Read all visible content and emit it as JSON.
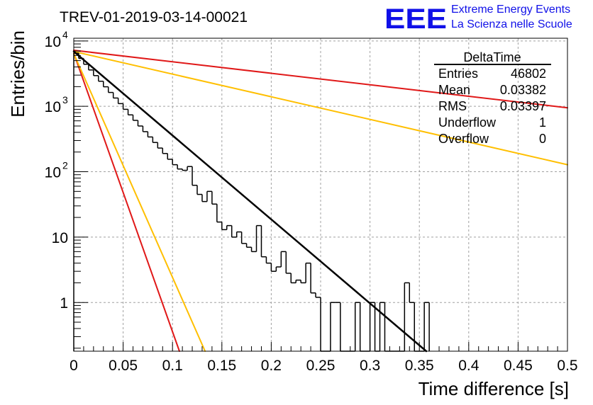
{
  "title": "TREV-01-2019-03-14-00021",
  "logo": {
    "text": "EEE",
    "line1": "Extreme Energy Events",
    "line2": "La Scienza nelle Scuole"
  },
  "stats_box": {
    "name": "DeltaTime",
    "rows": [
      {
        "label": "Entries",
        "value": "46802"
      },
      {
        "label": "Mean",
        "value": "0.03382"
      },
      {
        "label": "RMS",
        "value": "0.03397"
      },
      {
        "label": "Underflow",
        "value": "1"
      },
      {
        "label": "Overflow",
        "value": "0"
      }
    ]
  },
  "chart_data": {
    "type": "line",
    "title": "TREV-01-2019-03-14-00021",
    "xlabel": "Time difference [s]",
    "ylabel": "Entries/bin",
    "xlim": [
      0,
      0.5
    ],
    "ylim": [
      0.18,
      11000
    ],
    "yscale": "log",
    "grid": true,
    "x_ticks": [
      "0",
      "0.05",
      "0.1",
      "0.15",
      "0.2",
      "0.25",
      "0.3",
      "0.35",
      "0.4",
      "0.45",
      "0.5"
    ],
    "y_ticks": [
      {
        "value": 1,
        "base": "1",
        "exp": ""
      },
      {
        "value": 10,
        "base": "10",
        "exp": ""
      },
      {
        "value": 100,
        "base": "10",
        "exp": "2"
      },
      {
        "value": 1000,
        "base": "10",
        "exp": "3"
      },
      {
        "value": 10000,
        "base": "10",
        "exp": "4"
      }
    ],
    "histogram": {
      "name": "DeltaTime",
      "color": "#000000",
      "bin_width": 0.005,
      "x_start": 0,
      "values": [
        6500,
        5400,
        4400,
        3600,
        2950,
        2420,
        1990,
        1630,
        1340,
        1100,
        900,
        740,
        610,
        500,
        410,
        340,
        280,
        230,
        190,
        155,
        128,
        110,
        105,
        120,
        62,
        45,
        35,
        50,
        32,
        17,
        13,
        15,
        10,
        12,
        8,
        7,
        6,
        15,
        5,
        4,
        3,
        3.5,
        6,
        2.8,
        2,
        2.2,
        2,
        4,
        1.4,
        1.2,
        0.1,
        0.1,
        1,
        1,
        0.1,
        0.1,
        0.1,
        1,
        0.1,
        0.1,
        1,
        0.1,
        1,
        0.1,
        0.1,
        0.1,
        0.1,
        2,
        1,
        0.1,
        0.1,
        1
      ]
    },
    "fits": [
      {
        "name": "fit",
        "color": "#000000",
        "width": 2.5,
        "x": [
          0,
          0.357
        ],
        "y": [
          6900,
          0.18
        ]
      },
      {
        "name": "red-steep",
        "color": "#e01818",
        "width": 2,
        "x": [
          0,
          0.107
        ],
        "y": [
          6500,
          0.18
        ]
      },
      {
        "name": "yellow-steep",
        "color": "#ffbf00",
        "width": 2,
        "x": [
          0,
          0.133
        ],
        "y": [
          6400,
          0.18
        ]
      },
      {
        "name": "yellow-shallow",
        "color": "#ffbf00",
        "width": 2,
        "x": [
          0,
          0.5
        ],
        "y": [
          6900,
          128
        ]
      },
      {
        "name": "red-shallow",
        "color": "#e01818",
        "width": 2,
        "x": [
          0,
          0.5
        ],
        "y": [
          7200,
          950
        ]
      }
    ]
  }
}
